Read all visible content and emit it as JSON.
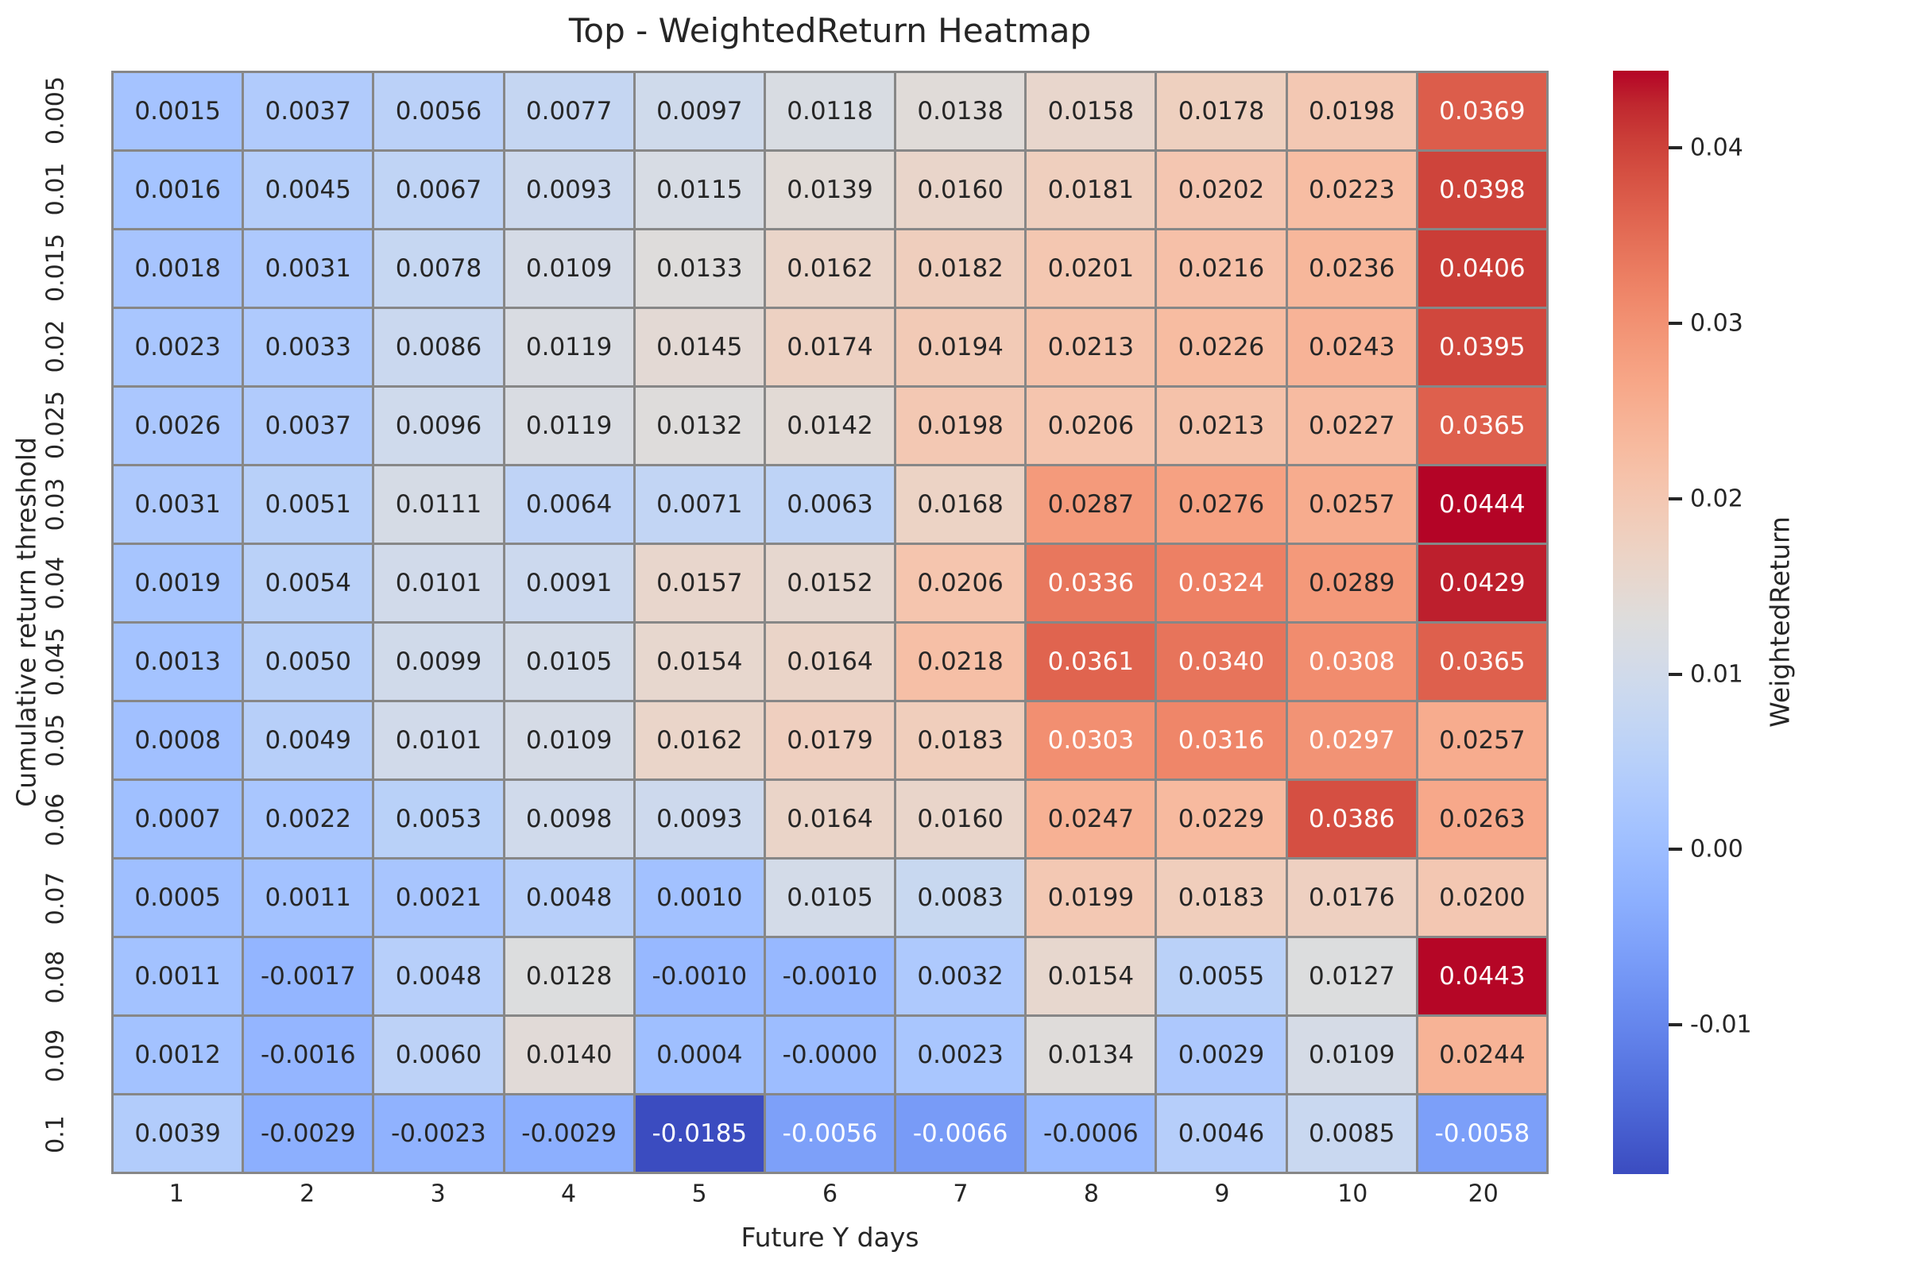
{
  "chart_data": {
    "type": "heatmap",
    "title": "Top - WeightedReturn Heatmap",
    "xlabel": "Future Y days",
    "ylabel": "Cumulative return threshold",
    "x_categories": [
      "1",
      "2",
      "3",
      "4",
      "5",
      "6",
      "7",
      "8",
      "9",
      "10",
      "20"
    ],
    "y_categories": [
      "0.005",
      "0.01",
      "0.015",
      "0.02",
      "0.025",
      "0.03",
      "0.04",
      "0.045",
      "0.05",
      "0.06",
      "0.07",
      "0.08",
      "0.09",
      "0.1"
    ],
    "values": [
      [
        "0.0015",
        "0.0037",
        "0.0056",
        "0.0077",
        "0.0097",
        "0.0118",
        "0.0138",
        "0.0158",
        "0.0178",
        "0.0198",
        "0.0369"
      ],
      [
        "0.0016",
        "0.0045",
        "0.0067",
        "0.0093",
        "0.0115",
        "0.0139",
        "0.0160",
        "0.0181",
        "0.0202",
        "0.0223",
        "0.0398"
      ],
      [
        "0.0018",
        "0.0031",
        "0.0078",
        "0.0109",
        "0.0133",
        "0.0162",
        "0.0182",
        "0.0201",
        "0.0216",
        "0.0236",
        "0.0406"
      ],
      [
        "0.0023",
        "0.0033",
        "0.0086",
        "0.0119",
        "0.0145",
        "0.0174",
        "0.0194",
        "0.0213",
        "0.0226",
        "0.0243",
        "0.0395"
      ],
      [
        "0.0026",
        "0.0037",
        "0.0096",
        "0.0119",
        "0.0132",
        "0.0142",
        "0.0198",
        "0.0206",
        "0.0213",
        "0.0227",
        "0.0365"
      ],
      [
        "0.0031",
        "0.0051",
        "0.0111",
        "0.0064",
        "0.0071",
        "0.0063",
        "0.0168",
        "0.0287",
        "0.0276",
        "0.0257",
        "0.0444"
      ],
      [
        "0.0019",
        "0.0054",
        "0.0101",
        "0.0091",
        "0.0157",
        "0.0152",
        "0.0206",
        "0.0336",
        "0.0324",
        "0.0289",
        "0.0429"
      ],
      [
        "0.0013",
        "0.0050",
        "0.0099",
        "0.0105",
        "0.0154",
        "0.0164",
        "0.0218",
        "0.0361",
        "0.0340",
        "0.0308",
        "0.0365"
      ],
      [
        "0.0008",
        "0.0049",
        "0.0101",
        "0.0109",
        "0.0162",
        "0.0179",
        "0.0183",
        "0.0303",
        "0.0316",
        "0.0297",
        "0.0257"
      ],
      [
        "0.0007",
        "0.0022",
        "0.0053",
        "0.0098",
        "0.0093",
        "0.0164",
        "0.0160",
        "0.0247",
        "0.0229",
        "0.0386",
        "0.0263"
      ],
      [
        "0.0005",
        "0.0011",
        "0.0021",
        "0.0048",
        "0.0010",
        "0.0105",
        "0.0083",
        "0.0199",
        "0.0183",
        "0.0176",
        "0.0200"
      ],
      [
        "0.0011",
        "-0.0017",
        "0.0048",
        "0.0128",
        "-0.0010",
        "-0.0010",
        "0.0032",
        "0.0154",
        "0.0055",
        "0.0127",
        "0.0443"
      ],
      [
        "0.0012",
        "-0.0016",
        "0.0060",
        "0.0140",
        "0.0004",
        "-0.0000",
        "0.0023",
        "0.0134",
        "0.0029",
        "0.0109",
        "0.0244"
      ],
      [
        "0.0039",
        "-0.0029",
        "-0.0023",
        "-0.0029",
        "-0.0185",
        "-0.0056",
        "-0.0066",
        "-0.0006",
        "0.0046",
        "0.0085",
        "-0.0058"
      ]
    ],
    "colormap": "coolwarm",
    "vmin": -0.0185,
    "vmax": 0.0444,
    "annotations": true,
    "grid_line_color": "#878787",
    "annotation_dark_color": "#262626",
    "annotation_light_color": "#ffffff",
    "background": "#ffffff",
    "colorbar": {
      "label": "WeightedReturn",
      "tick_values": [
        0.04,
        0.03,
        0.02,
        0.01,
        0.0,
        -0.01
      ],
      "tick_labels": [
        "0.04",
        "0.03",
        "0.02",
        "0.01",
        "0.00",
        "-0.01"
      ],
      "position": "right"
    },
    "legend": "none",
    "grid": "cell-borders"
  }
}
